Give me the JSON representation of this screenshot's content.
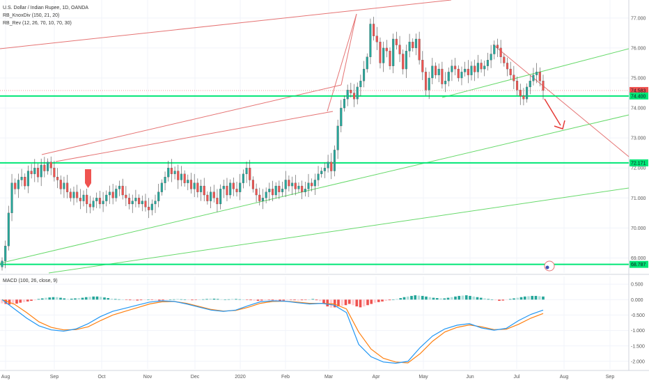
{
  "chart_data": [
    {
      "type": "candlestick",
      "title": "U.S. Dollar / Indian Rupee, 1D, OANDA",
      "indicators": [
        "RB_KnoxDiv (150, 21, 20)",
        "RB_Rev (12, 26, 70, 10, 70, 30)"
      ],
      "x_labels": [
        "Aug",
        "Sep",
        "Oct",
        "Nov",
        "Dec",
        "2020",
        "Feb",
        "Mar",
        "Apr",
        "May",
        "Jun",
        "Jul",
        "Aug",
        "Sep"
      ],
      "y_ticks": [
        "77.000",
        "76.000",
        "75.000",
        "74.000",
        "73.000",
        "72.000",
        "71.000",
        "70.000",
        "69.000"
      ],
      "ylim": [
        68.5,
        77.6
      ],
      "grid": true,
      "up_color": "#26a69a",
      "down_color": "#ef5350",
      "price_tags": [
        {
          "label": "74.583",
          "value": 74.583,
          "color": "#ef5350"
        },
        {
          "label": "74.400",
          "value": 74.4,
          "color": "#00e676"
        },
        {
          "label": "72.171",
          "value": 72.171,
          "color": "#00e676"
        },
        {
          "label": "68.787",
          "value": 68.787,
          "color": "#00e676"
        }
      ],
      "horizontal_levels": [
        74.4,
        72.171,
        68.787
      ],
      "closes": [
        68.9,
        69.4,
        70.5,
        71.5,
        71.3,
        71.6,
        71.7,
        71.4,
        71.9,
        71.8,
        72.0,
        71.7,
        72.1,
        71.9,
        72.2,
        72.0,
        71.7,
        71.6,
        71.3,
        71.5,
        71.2,
        71.0,
        71.2,
        71.0,
        70.9,
        71.1,
        70.8,
        70.7,
        70.9,
        71.0,
        70.8,
        70.9,
        71.1,
        71.2,
        71.0,
        71.3,
        71.4,
        71.1,
        71.0,
        70.8,
        70.9,
        71.0,
        70.8,
        70.9,
        70.7,
        70.6,
        70.8,
        70.9,
        71.2,
        71.5,
        71.7,
        72.0,
        71.8,
        71.9,
        71.6,
        71.8,
        71.5,
        71.6,
        71.3,
        71.5,
        71.2,
        71.4,
        71.1,
        70.9,
        71.2,
        71.0,
        70.8,
        71.3,
        71.4,
        71.1,
        71.5,
        71.3,
        71.2,
        71.5,
        71.8,
        72.0,
        71.6,
        71.3,
        71.1,
        70.9,
        71.0,
        71.2,
        71.3,
        71.1,
        71.4,
        71.2,
        71.3,
        71.6,
        71.4,
        71.5,
        71.3,
        71.4,
        71.2,
        71.3,
        71.5,
        71.4,
        71.6,
        71.8,
        71.9,
        72.0,
        72.2,
        71.9,
        72.6,
        73.4,
        74.0,
        74.3,
        74.6,
        74.5,
        74.3,
        74.7,
        74.9,
        75.3,
        75.7,
        76.8,
        76.4,
        76.2,
        75.5,
        76.0,
        75.9,
        75.4,
        76.3,
        76.1,
        75.8,
        75.3,
        75.9,
        76.2,
        76.0,
        76.3,
        75.6,
        75.2,
        74.6,
        75.0,
        75.4,
        75.1,
        75.3,
        74.8,
        74.9,
        75.2,
        75.4,
        75.3,
        75.0,
        75.2,
        75.3,
        75.1,
        75.4,
        75.2,
        75.5,
        75.3,
        75.4,
        75.6,
        75.8,
        76.1,
        76.0,
        75.7,
        75.5,
        75.3,
        75.1,
        74.9,
        74.6,
        74.4,
        74.3,
        74.7,
        74.9,
        75.1,
        75.2,
        74.9,
        74.583
      ],
      "macd": {
        "label": "MACD (100, 26, close, 9)",
        "y_ticks": [
          "0.500",
          "0.000",
          "-0.500",
          "-1.000",
          "-1.500",
          "-2.000"
        ],
        "ylim": [
          -2.25,
          0.75
        ],
        "macd_line": [
          0.0,
          -0.3,
          -0.6,
          -0.85,
          -0.98,
          -1.02,
          -0.95,
          -0.78,
          -0.55,
          -0.38,
          -0.28,
          -0.18,
          -0.08,
          -0.04,
          -0.06,
          -0.14,
          -0.24,
          -0.34,
          -0.38,
          -0.34,
          -0.2,
          -0.07,
          -0.04,
          -0.05,
          -0.1,
          -0.14,
          -0.12,
          -0.18,
          -0.42,
          -1.45,
          -1.85,
          -2.02,
          -2.06,
          -2.0,
          -1.55,
          -1.18,
          -0.95,
          -0.83,
          -0.78,
          -0.92,
          -0.99,
          -0.93,
          -0.68,
          -0.48,
          -0.34
        ],
        "signal_line": [
          0.0,
          -0.15,
          -0.42,
          -0.72,
          -0.9,
          -0.98,
          -0.97,
          -0.88,
          -0.68,
          -0.5,
          -0.38,
          -0.26,
          -0.14,
          -0.07,
          -0.06,
          -0.12,
          -0.22,
          -0.32,
          -0.37,
          -0.35,
          -0.25,
          -0.12,
          -0.06,
          -0.05,
          -0.08,
          -0.12,
          -0.12,
          -0.14,
          -0.3,
          -1.05,
          -1.6,
          -1.9,
          -2.02,
          -2.05,
          -1.75,
          -1.35,
          -1.05,
          -0.9,
          -0.82,
          -0.88,
          -0.97,
          -0.96,
          -0.8,
          -0.6,
          -0.45
        ],
        "histogram": [
          -0.12,
          -0.14,
          -0.16,
          -0.15,
          -0.13,
          -0.1,
          -0.08,
          -0.06,
          -0.04,
          -0.02,
          0.02,
          0.04,
          0.06,
          0.07,
          0.08,
          0.08,
          0.06,
          0.04,
          0.02,
          0.03,
          0.04,
          0.05,
          0.06,
          0.08,
          0.09,
          0.1,
          0.1,
          0.09,
          0.07,
          0.05,
          0.03,
          0.02,
          0.01,
          0.0,
          -0.01,
          -0.02,
          -0.03,
          -0.03,
          -0.02,
          -0.01,
          0.0,
          -0.01,
          -0.02,
          -0.03,
          -0.02,
          -0.01,
          0.0,
          0.01,
          0.02,
          0.01,
          0.0,
          -0.01,
          -0.02,
          -0.01,
          0.0,
          0.01,
          0.02,
          0.03,
          0.03,
          0.02,
          0.01,
          0.0,
          0.01,
          0.02,
          0.02,
          0.01,
          0.0,
          -0.01,
          -0.02,
          -0.03,
          -0.04,
          -0.03,
          -0.02,
          -0.01,
          -0.02,
          -0.03,
          -0.04,
          -0.03,
          -0.02,
          -0.01,
          -0.02,
          -0.03,
          -0.02,
          -0.01,
          0.0,
          0.02,
          -0.02,
          -0.05,
          -0.12,
          -0.22,
          -0.26,
          -0.25,
          -0.22,
          -0.2,
          -0.18,
          -0.14,
          -0.18,
          -0.22,
          -0.25,
          -0.22,
          -0.18,
          -0.14,
          -0.1,
          -0.08,
          -0.06,
          -0.04,
          -0.02,
          0.0,
          0.02,
          0.05,
          0.08,
          0.1,
          0.12,
          0.14,
          0.13,
          0.12,
          0.1,
          0.08,
          0.06,
          0.05,
          0.04,
          0.04,
          0.06,
          0.08,
          0.1,
          0.12,
          0.13,
          0.14,
          0.12,
          0.1,
          0.08,
          0.06,
          0.04,
          0.02,
          0.0,
          -0.02,
          -0.04,
          -0.03,
          -0.01,
          0.02,
          0.04,
          0.06,
          0.08,
          0.1,
          0.11,
          0.12,
          0.12,
          0.11,
          0.1
        ]
      }
    }
  ]
}
